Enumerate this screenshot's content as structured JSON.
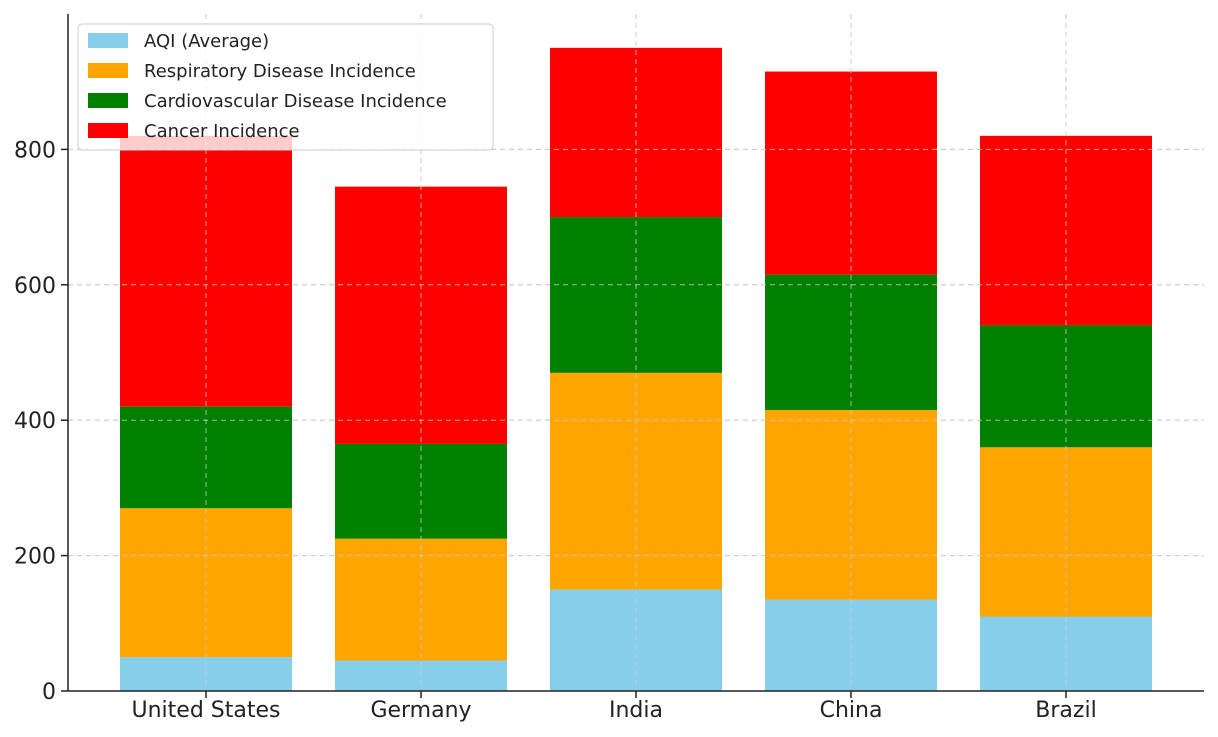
{
  "chart_data": {
    "type": "bar",
    "stacked": true,
    "title": "",
    "xlabel": "",
    "ylabel": "",
    "categories": [
      "United States",
      "Germany",
      "India",
      "China",
      "Brazil"
    ],
    "series": [
      {
        "name": "AQI (Average)",
        "color": "#87ceeb",
        "values": [
          50,
          45,
          150,
          135,
          110
        ]
      },
      {
        "name": "Respiratory Disease Incidence",
        "color": "#ffa500",
        "values": [
          220,
          180,
          320,
          280,
          250
        ]
      },
      {
        "name": "Cardiovascular Disease Incidence",
        "color": "#008000",
        "values": [
          150,
          140,
          230,
          200,
          180
        ]
      },
      {
        "name": "Cancer Incidence",
        "color": "#ff0000",
        "values": [
          400,
          380,
          250,
          300,
          280
        ]
      }
    ],
    "ylim": [
      0,
      1000
    ],
    "yticks": [
      0,
      200,
      400,
      600,
      800
    ],
    "grid": true,
    "legend_position": "top-left"
  }
}
